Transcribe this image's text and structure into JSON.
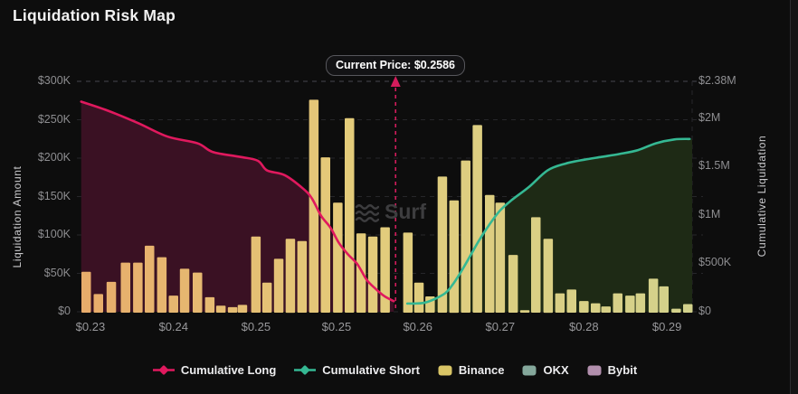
{
  "title": "Liquidation Risk Map",
  "watermark": "Surf",
  "tooltip": {
    "label": "Current Price: $0.2586"
  },
  "axes": {
    "left_title": "Liquidation Amount",
    "right_title": "Cumulative Liquidation"
  },
  "legend": [
    {
      "label": "Cumulative Long",
      "type": "line",
      "color": "#e0195e"
    },
    {
      "label": "Cumulative Short",
      "type": "line",
      "color": "#35b893"
    },
    {
      "label": "Binance",
      "type": "swatch",
      "color": "#d9c566"
    },
    {
      "label": "OKX",
      "type": "swatch",
      "color": "#84a79b"
    },
    {
      "label": "Bybit",
      "type": "swatch",
      "color": "#b28fad"
    }
  ],
  "colors": {
    "grid": "#26262a",
    "grid_top": "#48484e",
    "long_line": "#e0195e",
    "long_fill": "#3a1123",
    "short_line": "#35b893",
    "short_fill": "#1e2a15",
    "bar_left": "#e8ab6a",
    "bar_mid": "#e3cb7a",
    "bar_right": "#d3d28c",
    "current_line": "#d41c5c"
  },
  "chart_data": {
    "type": "bar+line combo (liquidation map)",
    "title": "Liquidation Risk Map",
    "current_price": "$0.2586",
    "current_price_frac": 0.518,
    "left_axis": {
      "label": "Liquidation Amount",
      "range": [
        0,
        300000
      ],
      "ticks": [
        {
          "label": "$300K",
          "value": 300000
        },
        {
          "label": "$250K",
          "value": 250000
        },
        {
          "label": "$200K",
          "value": 200000
        },
        {
          "label": "$150K",
          "value": 150000
        },
        {
          "label": "$100K",
          "value": 100000
        },
        {
          "label": "$50K",
          "value": 50000
        },
        {
          "label": "$0",
          "value": 0
        }
      ]
    },
    "right_axis": {
      "label": "Cumulative Liquidation",
      "range": [
        0,
        2380000
      ],
      "ticks": [
        {
          "label": "$2.38M",
          "value": 2380000
        },
        {
          "label": "$2M",
          "value": 2000000
        },
        {
          "label": "$1.5M",
          "value": 1500000
        },
        {
          "label": "$1M",
          "value": 1000000
        },
        {
          "label": "$500K",
          "value": 500000
        },
        {
          "label": "$0",
          "value": 0
        }
      ]
    },
    "x_axis": {
      "grid": false,
      "ticks": [
        {
          "label": "$0.23",
          "f": 0.022
        },
        {
          "label": "$0.24",
          "f": 0.157
        },
        {
          "label": "$0.25",
          "f": 0.291
        },
        {
          "label": "$0.25",
          "f": 0.422
        },
        {
          "label": "$0.26",
          "f": 0.554
        },
        {
          "label": "$0.27",
          "f": 0.688
        },
        {
          "label": "$0.28",
          "f": 0.824
        },
        {
          "label": "$0.29",
          "f": 0.959
        }
      ]
    },
    "bars": {
      "name": "Binance",
      "axis": "left",
      "unit": "USD",
      "x_frac": [
        0.015,
        0.035,
        0.056,
        0.079,
        0.099,
        0.118,
        0.138,
        0.157,
        0.175,
        0.196,
        0.216,
        0.234,
        0.253,
        0.269,
        0.291,
        0.309,
        0.328,
        0.347,
        0.366,
        0.385,
        0.404,
        0.424,
        0.443,
        0.462,
        0.481,
        0.501,
        0.538,
        0.556,
        0.574,
        0.594,
        0.613,
        0.632,
        0.651,
        0.671,
        0.688,
        0.709,
        0.728,
        0.746,
        0.766,
        0.785,
        0.804,
        0.824,
        0.843,
        0.86,
        0.879,
        0.899,
        0.916,
        0.937,
        0.954,
        0.974,
        0.993
      ],
      "values": [
        52000,
        23000,
        39000,
        64000,
        64000,
        86000,
        71000,
        21000,
        56000,
        51000,
        19000,
        8000,
        6000,
        9000,
        98000,
        38000,
        69000,
        95000,
        92000,
        276000,
        201000,
        142000,
        252000,
        102000,
        98000,
        110000,
        103000,
        38000,
        20000,
        176000,
        145000,
        197000,
        243000,
        152000,
        142000,
        74000,
        2000,
        123000,
        95000,
        24000,
        29000,
        14000,
        11000,
        7000,
        24000,
        21000,
        24000,
        43000,
        33000,
        4000,
        10000
      ]
    },
    "series": [
      {
        "name": "Cumulative Long",
        "axis": "right",
        "unit": "USD",
        "points": [
          [
            0.007,
            2170000
          ],
          [
            0.049,
            2080000
          ],
          [
            0.099,
            1950000
          ],
          [
            0.147,
            1810000
          ],
          [
            0.196,
            1740000
          ],
          [
            0.221,
            1650000
          ],
          [
            0.265,
            1600000
          ],
          [
            0.294,
            1560000
          ],
          [
            0.309,
            1460000
          ],
          [
            0.338,
            1410000
          ],
          [
            0.368,
            1270000
          ],
          [
            0.382,
            1170000
          ],
          [
            0.397,
            990000
          ],
          [
            0.412,
            870000
          ],
          [
            0.426,
            710000
          ],
          [
            0.441,
            590000
          ],
          [
            0.456,
            490000
          ],
          [
            0.471,
            330000
          ],
          [
            0.485,
            240000
          ],
          [
            0.5,
            160000
          ],
          [
            0.515,
            110000
          ]
        ]
      },
      {
        "name": "Cumulative Short",
        "axis": "right",
        "unit": "USD",
        "points": [
          [
            0.537,
            85000
          ],
          [
            0.566,
            95000
          ],
          [
            0.596,
            180000
          ],
          [
            0.61,
            274000
          ],
          [
            0.625,
            420000
          ],
          [
            0.64,
            585000
          ],
          [
            0.654,
            740000
          ],
          [
            0.669,
            887000
          ],
          [
            0.687,
            1040000
          ],
          [
            0.706,
            1150000
          ],
          [
            0.735,
            1290000
          ],
          [
            0.765,
            1460000
          ],
          [
            0.794,
            1530000
          ],
          [
            0.824,
            1570000
          ],
          [
            0.853,
            1600000
          ],
          [
            0.882,
            1630000
          ],
          [
            0.912,
            1670000
          ],
          [
            0.941,
            1740000
          ],
          [
            0.971,
            1780000
          ],
          [
            0.996,
            1785000
          ]
        ]
      }
    ],
    "legend_position": "bottom"
  }
}
